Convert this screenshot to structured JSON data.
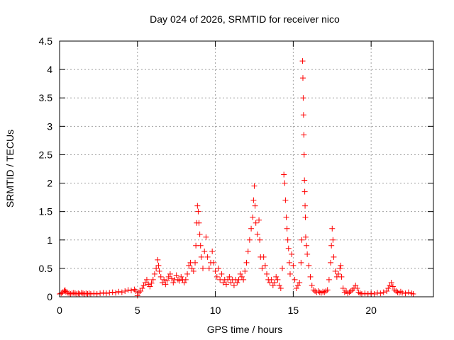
{
  "chart_data": {
    "type": "scatter",
    "title": "Day 024 of 2026, SRMTID for receiver nico",
    "xlabel": "GPS time / hours",
    "ylabel": "SRMTID / TECUs",
    "xlim": [
      0,
      24
    ],
    "ylim": [
      0,
      4.5
    ],
    "xticks": [
      0,
      5,
      10,
      15,
      20
    ],
    "xtick_labels": [
      "0",
      "5",
      "10",
      "15",
      "20"
    ],
    "yticks": [
      0,
      0.5,
      1,
      1.5,
      2,
      2.5,
      3,
      3.5,
      4,
      4.5
    ],
    "ytick_labels": [
      "0",
      "0.5",
      "1",
      "1.5",
      "2",
      "2.5",
      "3",
      "3.5",
      "4",
      "4.5"
    ],
    "grid": true,
    "marker": "+",
    "marker_color": "#ff0000",
    "series": [
      {
        "name": "SRMTID",
        "points": [
          [
            0.0,
            0.05
          ],
          [
            0.1,
            0.06
          ],
          [
            0.2,
            0.08
          ],
          [
            0.3,
            0.1
          ],
          [
            0.35,
            0.12
          ],
          [
            0.4,
            0.09
          ],
          [
            0.5,
            0.07
          ],
          [
            0.6,
            0.06
          ],
          [
            0.7,
            0.05
          ],
          [
            0.8,
            0.06
          ],
          [
            0.9,
            0.07
          ],
          [
            1.0,
            0.06
          ],
          [
            1.1,
            0.05
          ],
          [
            1.2,
            0.06
          ],
          [
            1.3,
            0.05
          ],
          [
            1.4,
            0.07
          ],
          [
            1.5,
            0.06
          ],
          [
            1.6,
            0.05
          ],
          [
            1.7,
            0.06
          ],
          [
            1.8,
            0.05
          ],
          [
            1.9,
            0.06
          ],
          [
            2.0,
            0.05
          ],
          [
            2.2,
            0.06
          ],
          [
            2.4,
            0.05
          ],
          [
            2.6,
            0.06
          ],
          [
            2.8,
            0.07
          ],
          [
            3.0,
            0.06
          ],
          [
            3.2,
            0.07
          ],
          [
            3.4,
            0.08
          ],
          [
            3.6,
            0.07
          ],
          [
            3.8,
            0.09
          ],
          [
            4.0,
            0.08
          ],
          [
            4.2,
            0.1
          ],
          [
            4.4,
            0.12
          ],
          [
            4.6,
            0.11
          ],
          [
            4.8,
            0.13
          ],
          [
            4.9,
            0.1
          ],
          [
            5.0,
            0.02
          ],
          [
            5.1,
            0.08
          ],
          [
            5.2,
            0.1
          ],
          [
            5.3,
            0.15
          ],
          [
            5.4,
            0.2
          ],
          [
            5.5,
            0.25
          ],
          [
            5.6,
            0.3
          ],
          [
            5.7,
            0.22
          ],
          [
            5.8,
            0.18
          ],
          [
            5.9,
            0.24
          ],
          [
            6.0,
            0.3
          ],
          [
            6.1,
            0.4
          ],
          [
            6.2,
            0.5
          ],
          [
            6.3,
            0.65
          ],
          [
            6.35,
            0.55
          ],
          [
            6.4,
            0.45
          ],
          [
            6.5,
            0.35
          ],
          [
            6.6,
            0.25
          ],
          [
            6.7,
            0.3
          ],
          [
            6.8,
            0.22
          ],
          [
            6.9,
            0.28
          ],
          [
            7.0,
            0.35
          ],
          [
            7.1,
            0.4
          ],
          [
            7.2,
            0.32
          ],
          [
            7.3,
            0.25
          ],
          [
            7.4,
            0.3
          ],
          [
            7.5,
            0.38
          ],
          [
            7.6,
            0.3
          ],
          [
            7.7,
            0.28
          ],
          [
            7.8,
            0.35
          ],
          [
            7.9,
            0.3
          ],
          [
            8.0,
            0.25
          ],
          [
            8.1,
            0.3
          ],
          [
            8.2,
            0.4
          ],
          [
            8.3,
            0.55
          ],
          [
            8.4,
            0.6
          ],
          [
            8.5,
            0.5
          ],
          [
            8.6,
            0.45
          ],
          [
            8.7,
            0.6
          ],
          [
            8.75,
            0.9
          ],
          [
            8.8,
            1.3
          ],
          [
            8.85,
            1.6
          ],
          [
            8.9,
            1.5
          ],
          [
            8.95,
            1.3
          ],
          [
            9.0,
            1.1
          ],
          [
            9.05,
            0.9
          ],
          [
            9.1,
            0.7
          ],
          [
            9.2,
            0.5
          ],
          [
            9.3,
            0.8
          ],
          [
            9.4,
            1.05
          ],
          [
            9.5,
            0.7
          ],
          [
            9.6,
            0.5
          ],
          [
            9.7,
            0.6
          ],
          [
            9.8,
            0.8
          ],
          [
            9.9,
            0.6
          ],
          [
            10.0,
            0.45
          ],
          [
            10.1,
            0.35
          ],
          [
            10.2,
            0.5
          ],
          [
            10.3,
            0.3
          ],
          [
            10.4,
            0.4
          ],
          [
            10.5,
            0.25
          ],
          [
            10.6,
            0.3
          ],
          [
            10.7,
            0.22
          ],
          [
            10.8,
            0.3
          ],
          [
            10.9,
            0.35
          ],
          [
            11.0,
            0.25
          ],
          [
            11.1,
            0.3
          ],
          [
            11.2,
            0.2
          ],
          [
            11.3,
            0.3
          ],
          [
            11.4,
            0.25
          ],
          [
            11.5,
            0.3
          ],
          [
            11.6,
            0.4
          ],
          [
            11.7,
            0.35
          ],
          [
            11.8,
            0.3
          ],
          [
            11.9,
            0.45
          ],
          [
            12.0,
            0.6
          ],
          [
            12.1,
            0.8
          ],
          [
            12.2,
            1.0
          ],
          [
            12.3,
            1.2
          ],
          [
            12.4,
            1.4
          ],
          [
            12.45,
            1.7
          ],
          [
            12.5,
            1.95
          ],
          [
            12.55,
            1.6
          ],
          [
            12.6,
            1.3
          ],
          [
            12.7,
            1.1
          ],
          [
            12.8,
            1.35
          ],
          [
            12.85,
            1.0
          ],
          [
            12.9,
            0.7
          ],
          [
            13.0,
            0.5
          ],
          [
            13.1,
            0.7
          ],
          [
            13.2,
            0.55
          ],
          [
            13.3,
            0.4
          ],
          [
            13.4,
            0.3
          ],
          [
            13.5,
            0.25
          ],
          [
            13.6,
            0.3
          ],
          [
            13.7,
            0.2
          ],
          [
            13.8,
            0.25
          ],
          [
            13.9,
            0.35
          ],
          [
            14.0,
            0.3
          ],
          [
            14.1,
            0.2
          ],
          [
            14.2,
            0.15
          ],
          [
            14.3,
            0.5
          ],
          [
            14.4,
            2.15
          ],
          [
            14.45,
            2.0
          ],
          [
            14.5,
            1.7
          ],
          [
            14.55,
            1.4
          ],
          [
            14.6,
            1.2
          ],
          [
            14.65,
            1.0
          ],
          [
            14.7,
            0.85
          ],
          [
            14.75,
            0.6
          ],
          [
            14.8,
            0.4
          ],
          [
            14.9,
            0.75
          ],
          [
            15.0,
            0.55
          ],
          [
            15.1,
            0.3
          ],
          [
            15.2,
            0.15
          ],
          [
            15.3,
            0.2
          ],
          [
            15.4,
            0.25
          ],
          [
            15.5,
            0.6
          ],
          [
            15.55,
            1.0
          ],
          [
            15.6,
            4.15
          ],
          [
            15.62,
            3.85
          ],
          [
            15.64,
            3.5
          ],
          [
            15.66,
            3.2
          ],
          [
            15.68,
            2.85
          ],
          [
            15.7,
            2.5
          ],
          [
            15.72,
            2.05
          ],
          [
            15.74,
            1.85
          ],
          [
            15.76,
            1.6
          ],
          [
            15.78,
            1.4
          ],
          [
            15.8,
            1.05
          ],
          [
            15.85,
            0.9
          ],
          [
            15.9,
            0.75
          ],
          [
            16.0,
            0.55
          ],
          [
            16.1,
            0.35
          ],
          [
            16.2,
            0.2
          ],
          [
            16.3,
            0.12
          ],
          [
            16.4,
            0.1
          ],
          [
            16.5,
            0.08
          ],
          [
            16.6,
            0.1
          ],
          [
            16.7,
            0.08
          ],
          [
            16.8,
            0.07
          ],
          [
            16.9,
            0.09
          ],
          [
            17.0,
            0.08
          ],
          [
            17.1,
            0.1
          ],
          [
            17.2,
            0.12
          ],
          [
            17.3,
            0.3
          ],
          [
            17.4,
            0.6
          ],
          [
            17.45,
            0.9
          ],
          [
            17.5,
            1.2
          ],
          [
            17.55,
            1.0
          ],
          [
            17.6,
            0.7
          ],
          [
            17.7,
            0.45
          ],
          [
            17.8,
            0.35
          ],
          [
            17.9,
            0.4
          ],
          [
            18.0,
            0.5
          ],
          [
            18.05,
            0.55
          ],
          [
            18.1,
            0.35
          ],
          [
            18.2,
            0.15
          ],
          [
            18.3,
            0.08
          ],
          [
            18.4,
            0.1
          ],
          [
            18.5,
            0.06
          ],
          [
            18.6,
            0.08
          ],
          [
            18.7,
            0.1
          ],
          [
            18.8,
            0.12
          ],
          [
            18.9,
            0.15
          ],
          [
            19.0,
            0.2
          ],
          [
            19.1,
            0.15
          ],
          [
            19.2,
            0.08
          ],
          [
            19.3,
            0.06
          ],
          [
            19.4,
            0.05
          ],
          [
            19.6,
            0.06
          ],
          [
            19.8,
            0.05
          ],
          [
            20.0,
            0.06
          ],
          [
            20.2,
            0.05
          ],
          [
            20.4,
            0.07
          ],
          [
            20.6,
            0.06
          ],
          [
            20.8,
            0.08
          ],
          [
            21.0,
            0.1
          ],
          [
            21.1,
            0.15
          ],
          [
            21.2,
            0.2
          ],
          [
            21.3,
            0.25
          ],
          [
            21.4,
            0.18
          ],
          [
            21.5,
            0.12
          ],
          [
            21.6,
            0.1
          ],
          [
            21.7,
            0.08
          ],
          [
            21.8,
            0.07
          ],
          [
            21.9,
            0.09
          ],
          [
            22.0,
            0.07
          ],
          [
            22.2,
            0.06
          ],
          [
            22.4,
            0.08
          ],
          [
            22.6,
            0.06
          ],
          [
            22.7,
            0.05
          ]
        ]
      }
    ]
  }
}
